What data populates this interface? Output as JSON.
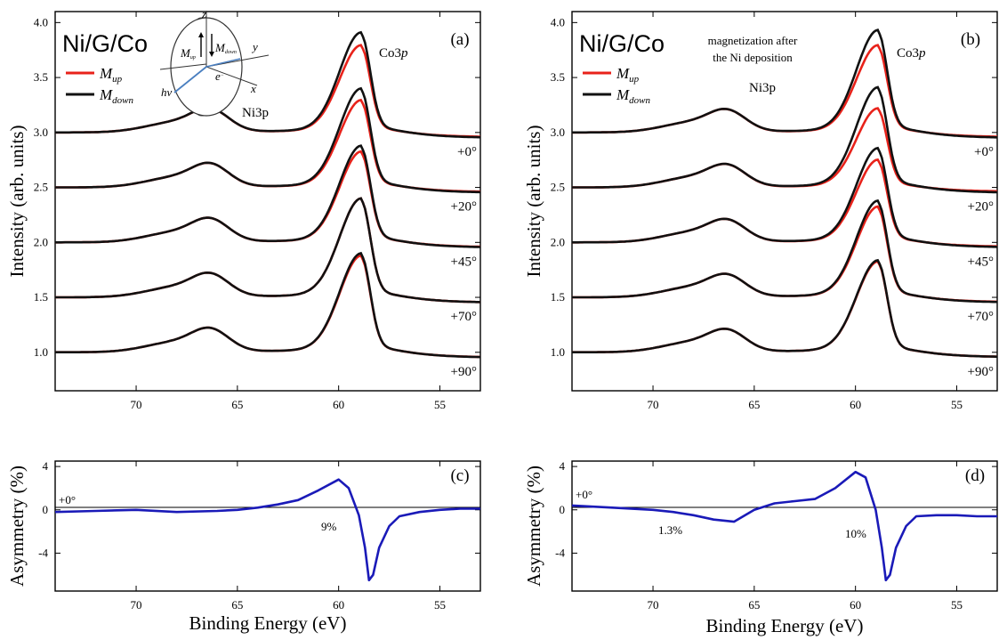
{
  "panels": {
    "a": {
      "tag": "(a)",
      "sample": "Ni/G/Co",
      "legend": {
        "up": "M",
        "up_sub": "up",
        "down": "M",
        "down_sub": "down"
      },
      "peak_ni": "Ni3p",
      "peak_co": "Co3",
      "peak_co_p": "p",
      "inset": {
        "z": "z",
        "y": "y",
        "x": "x",
        "mup": "M",
        "mup_sub": "up",
        "mdown": "M",
        "mdown_sub": "down",
        "hv": "hv",
        "e": "e",
        "e_sup": "−"
      }
    },
    "b": {
      "tag": "(b)",
      "sample": "Ni/G/Co",
      "note_line1": "magnetization after",
      "note_line2": "the Ni deposition",
      "legend": {
        "up": "M",
        "up_sub": "up",
        "down": "M",
        "down_sub": "down"
      },
      "peak_ni": "Ni3p",
      "peak_co": "Co3",
      "peak_co_p": "p"
    },
    "c": {
      "tag": "(c)",
      "angle": "+0°",
      "pct": "9%"
    },
    "d": {
      "tag": "(d)",
      "angle": "+0°",
      "pct1": "1.3%",
      "pct2": "10%"
    }
  },
  "axes": {
    "top_ylabel": "Intensity (arb. units)",
    "bottom_ylabel": "Asymmetry (%)",
    "xlabel": "Binding Energy (eV)",
    "angles": [
      "+0°",
      "+20°",
      "+45°",
      "+70°",
      "+90°"
    ]
  },
  "chart_data": [
    {
      "id": "a",
      "type": "line",
      "x_range": [
        74,
        53
      ],
      "ylim": [
        0.65,
        4.1
      ],
      "x_ticks": [
        70,
        65,
        60,
        55
      ],
      "y_ticks": [
        1.0,
        1.5,
        2.0,
        2.5,
        3.0,
        3.5,
        4.0
      ],
      "offsets": [
        3.0,
        2.5,
        2.0,
        1.5,
        1.0
      ],
      "co_peak_up": [
        3.75,
        3.25,
        2.78,
        2.35,
        1.83
      ],
      "co_peak_down": [
        3.86,
        3.35,
        2.83,
        2.35,
        1.85
      ],
      "ni_peak": 0.17,
      "series": [
        {
          "name": "M_up",
          "color": "#e8221a"
        },
        {
          "name": "M_down",
          "color": "#111111"
        }
      ]
    },
    {
      "id": "b",
      "type": "line",
      "x_range": [
        74,
        53
      ],
      "ylim": [
        0.65,
        4.1
      ],
      "x_ticks": [
        70,
        65,
        60,
        55
      ],
      "y_ticks": [
        1.0,
        1.5,
        2.0,
        2.5,
        3.0,
        3.5,
        4.0
      ],
      "offsets": [
        3.0,
        2.5,
        2.0,
        1.5,
        1.0
      ],
      "co_peak_up": [
        3.75,
        3.18,
        2.71,
        2.28,
        1.78
      ],
      "co_peak_down": [
        3.88,
        3.36,
        2.81,
        2.33,
        1.79
      ],
      "ni_peak": 0.16,
      "series": [
        {
          "name": "M_up",
          "color": "#e8221a"
        },
        {
          "name": "M_down",
          "color": "#111111"
        }
      ]
    },
    {
      "id": "c",
      "type": "line",
      "x_range": [
        74,
        53
      ],
      "ylim": [
        -7.5,
        4.5
      ],
      "x_ticks": [
        70,
        65,
        60,
        55
      ],
      "y_ticks": [
        4,
        0,
        -4
      ],
      "color": "#1a1ab8",
      "x": [
        74,
        72,
        70,
        68,
        66,
        65,
        64,
        63,
        62,
        61,
        60,
        59.5,
        59,
        58.7,
        58.5,
        58.3,
        58,
        57.5,
        57,
        56,
        55,
        54,
        53
      ],
      "y": [
        -0.2,
        -0.1,
        0.0,
        -0.2,
        -0.1,
        0.0,
        0.2,
        0.5,
        0.9,
        1.8,
        2.8,
        2.0,
        -0.5,
        -3.5,
        -6.5,
        -6.0,
        -3.5,
        -1.5,
        -0.6,
        -0.2,
        0.0,
        0.1,
        0.1
      ]
    },
    {
      "id": "d",
      "type": "line",
      "x_range": [
        74,
        53
      ],
      "ylim": [
        -7.5,
        4.5
      ],
      "x_ticks": [
        70,
        65,
        60,
        55
      ],
      "y_ticks": [
        4,
        0,
        -4
      ],
      "color": "#1a1ab8",
      "x": [
        74,
        72,
        70,
        69,
        68,
        67,
        66,
        65,
        64,
        63,
        62,
        61,
        60,
        59.5,
        59,
        58.7,
        58.5,
        58.3,
        58,
        57.5,
        57,
        56,
        55,
        54,
        53
      ],
      "y": [
        0.4,
        0.2,
        0.0,
        -0.2,
        -0.5,
        -0.9,
        -1.1,
        0.0,
        0.6,
        0.8,
        1.0,
        2.0,
        3.5,
        3.0,
        0.0,
        -3.5,
        -6.5,
        -6.0,
        -3.5,
        -1.5,
        -0.6,
        -0.5,
        -0.5,
        -0.6,
        -0.6
      ]
    }
  ]
}
